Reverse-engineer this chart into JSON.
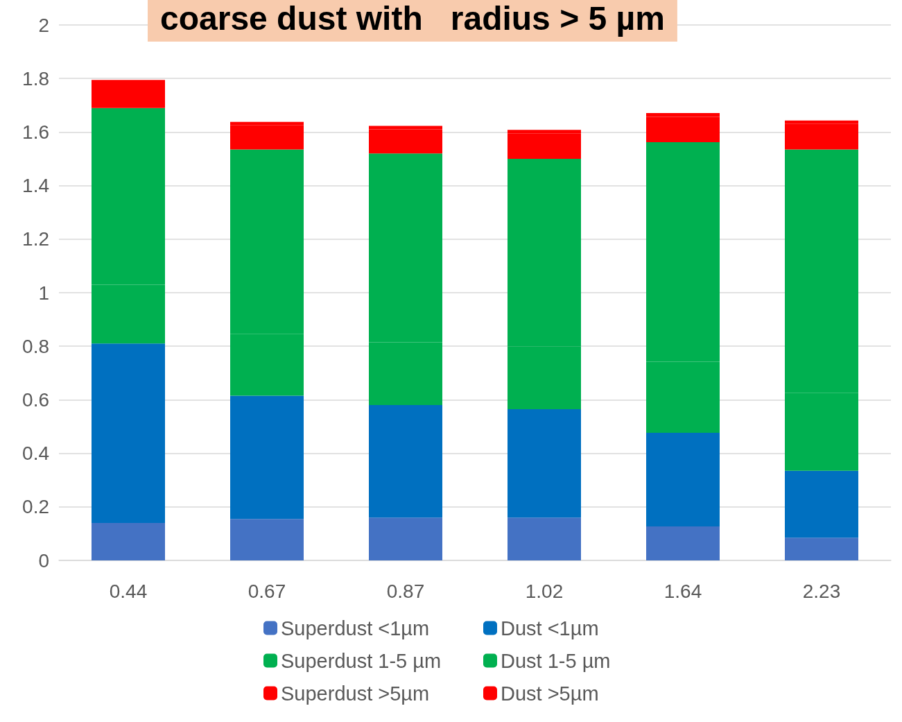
{
  "chart_data": {
    "type": "bar",
    "title": "coarse dust with   radius > 5 µm",
    "stacked": true,
    "grid": "y",
    "legend": "bottom",
    "categories": [
      "0.44",
      "0.67",
      "0.87",
      "1.02",
      "1.64",
      "2.23"
    ],
    "ylim": [
      0,
      2
    ],
    "yticks": [
      0,
      0.2,
      0.4,
      0.6,
      0.8,
      1,
      1.2,
      1.4,
      1.6,
      1.8,
      2
    ],
    "series": [
      {
        "name": "Superdust <1µm",
        "color": "#4472c4",
        "values": [
          0.14,
          0.155,
          0.16,
          0.16,
          0.127,
          0.085
        ]
      },
      {
        "name": "Dust <1µm",
        "color": "#0070c0",
        "values": [
          0.67,
          0.46,
          0.42,
          0.405,
          0.35,
          0.25
        ]
      },
      {
        "name": "Superdust 1-5 µm",
        "color": "#00b050",
        "values": [
          0.22,
          0.23,
          0.235,
          0.235,
          0.265,
          0.29
        ]
      },
      {
        "name": "Dust 1-5 µm",
        "color": "#00b050",
        "values": [
          0.66,
          0.69,
          0.705,
          0.7,
          0.82,
          0.91
        ]
      },
      {
        "name": "Superdust >5µm",
        "color": "#ff0000",
        "values": [
          0.09,
          0.09,
          0.09,
          0.095,
          0.095,
          0.095
        ]
      },
      {
        "name": "Dust >5µm",
        "color": "#ff0000",
        "values": [
          0.015,
          0.013,
          0.013,
          0.013,
          0.014,
          0.013
        ]
      }
    ]
  }
}
